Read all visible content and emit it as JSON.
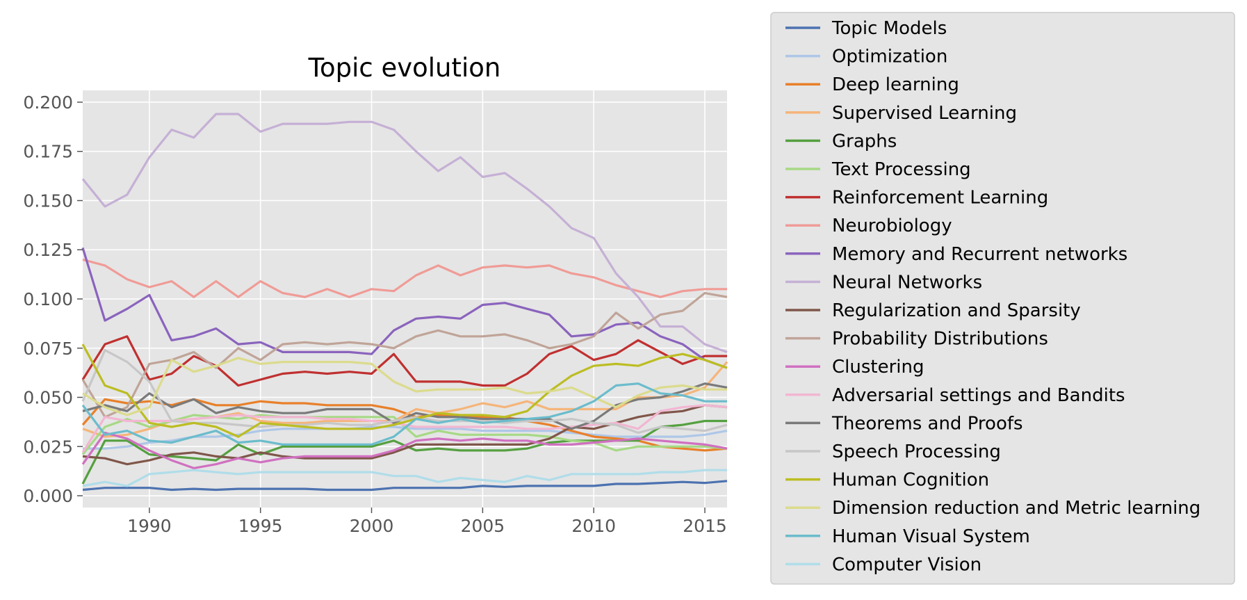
{
  "chart_data": {
    "type": "line",
    "title": "Topic evolution",
    "xlabel": "",
    "ylabel": "",
    "xlim": [
      1987,
      2016
    ],
    "ylim": [
      -0.006,
      0.206
    ],
    "x_ticks": [
      1990,
      1995,
      2000,
      2005,
      2010,
      2015
    ],
    "y_ticks": [
      "0.000",
      "0.025",
      "0.050",
      "0.075",
      "0.100",
      "0.125",
      "0.150",
      "0.175",
      "0.200"
    ],
    "grid": true,
    "legend_position": "right, outside plot",
    "x": [
      1987,
      1988,
      1989,
      1990,
      1991,
      1992,
      1993,
      1994,
      1995,
      1996,
      1997,
      1998,
      1999,
      2000,
      2001,
      2002,
      2003,
      2004,
      2005,
      2006,
      2007,
      2008,
      2009,
      2010,
      2011,
      2012,
      2013,
      2014,
      2015,
      2016
    ],
    "series": [
      {
        "name": "Topic Models",
        "color": "#4c72b0",
        "values": [
          0.003,
          0.004,
          0.004,
          0.004,
          0.003,
          0.0035,
          0.003,
          0.0035,
          0.0035,
          0.0035,
          0.0035,
          0.003,
          0.003,
          0.003,
          0.004,
          0.004,
          0.004,
          0.004,
          0.005,
          0.0045,
          0.005,
          0.005,
          0.005,
          0.005,
          0.006,
          0.006,
          0.0065,
          0.007,
          0.0065,
          0.0075
        ]
      },
      {
        "name": "Optimization",
        "color": "#aec7e8",
        "values": [
          0.024,
          0.024,
          0.025,
          0.027,
          0.028,
          0.03,
          0.03,
          0.031,
          0.033,
          0.034,
          0.034,
          0.034,
          0.034,
          0.035,
          0.035,
          0.034,
          0.034,
          0.034,
          0.033,
          0.033,
          0.033,
          0.033,
          0.032,
          0.031,
          0.03,
          0.03,
          0.03,
          0.03,
          0.031,
          0.033
        ]
      },
      {
        "name": "Deep learning",
        "color": "#e8802a",
        "values": [
          0.036,
          0.049,
          0.047,
          0.048,
          0.046,
          0.049,
          0.046,
          0.046,
          0.048,
          0.047,
          0.047,
          0.046,
          0.046,
          0.046,
          0.044,
          0.04,
          0.041,
          0.04,
          0.04,
          0.04,
          0.038,
          0.036,
          0.033,
          0.03,
          0.029,
          0.028,
          0.025,
          0.024,
          0.023,
          0.024
        ]
      },
      {
        "name": "Supervised Learning",
        "color": "#f5b57a",
        "values": [
          0.034,
          0.03,
          0.031,
          0.034,
          0.038,
          0.039,
          0.04,
          0.042,
          0.038,
          0.037,
          0.037,
          0.038,
          0.038,
          0.038,
          0.038,
          0.044,
          0.042,
          0.044,
          0.047,
          0.045,
          0.048,
          0.044,
          0.044,
          0.044,
          0.044,
          0.05,
          0.05,
          0.051,
          0.055,
          0.068
        ]
      },
      {
        "name": "Graphs",
        "color": "#55a040",
        "values": [
          0.006,
          0.028,
          0.028,
          0.021,
          0.02,
          0.019,
          0.018,
          0.026,
          0.021,
          0.025,
          0.025,
          0.025,
          0.025,
          0.025,
          0.028,
          0.023,
          0.024,
          0.023,
          0.023,
          0.023,
          0.024,
          0.027,
          0.028,
          0.028,
          0.028,
          0.028,
          0.035,
          0.036,
          0.038,
          0.038
        ]
      },
      {
        "name": "Text Processing",
        "color": "#a6d985",
        "values": [
          0.021,
          0.035,
          0.039,
          0.035,
          0.038,
          0.041,
          0.04,
          0.039,
          0.041,
          0.04,
          0.04,
          0.04,
          0.04,
          0.04,
          0.04,
          0.03,
          0.033,
          0.031,
          0.031,
          0.031,
          0.031,
          0.03,
          0.028,
          0.027,
          0.023,
          0.025,
          0.025,
          0.025,
          0.025,
          0.024
        ]
      },
      {
        "name": "Reinforcement Learning",
        "color": "#c03030",
        "values": [
          0.059,
          0.077,
          0.081,
          0.059,
          0.062,
          0.071,
          0.066,
          0.056,
          0.059,
          0.062,
          0.063,
          0.062,
          0.063,
          0.062,
          0.072,
          0.058,
          0.058,
          0.058,
          0.056,
          0.056,
          0.062,
          0.072,
          0.076,
          0.069,
          0.072,
          0.079,
          0.073,
          0.067,
          0.071,
          0.071
        ]
      },
      {
        "name": "Neurobiology",
        "color": "#f09b96",
        "values": [
          0.12,
          0.117,
          0.11,
          0.106,
          0.109,
          0.101,
          0.109,
          0.101,
          0.109,
          0.103,
          0.101,
          0.105,
          0.101,
          0.105,
          0.104,
          0.112,
          0.117,
          0.112,
          0.116,
          0.117,
          0.116,
          0.117,
          0.113,
          0.111,
          0.107,
          0.104,
          0.101,
          0.104,
          0.105,
          0.105
        ]
      },
      {
        "name": "Memory and Recurrent networks",
        "color": "#8a63bd",
        "values": [
          0.126,
          0.089,
          0.095,
          0.102,
          0.079,
          0.081,
          0.085,
          0.077,
          0.078,
          0.073,
          0.073,
          0.073,
          0.073,
          0.072,
          0.084,
          0.09,
          0.091,
          0.09,
          0.097,
          0.098,
          0.095,
          0.092,
          0.081,
          0.082,
          0.087,
          0.088,
          0.081,
          0.077,
          0.069,
          0.065
        ]
      },
      {
        "name": "Neural Networks",
        "color": "#c5b0d5",
        "values": [
          0.161,
          0.147,
          0.153,
          0.172,
          0.186,
          0.182,
          0.194,
          0.194,
          0.185,
          0.189,
          0.189,
          0.189,
          0.19,
          0.19,
          0.186,
          0.175,
          0.165,
          0.172,
          0.162,
          0.164,
          0.156,
          0.147,
          0.136,
          0.131,
          0.113,
          0.101,
          0.086,
          0.086,
          0.077,
          0.073
        ]
      },
      {
        "name": "Regularization and Sparsity",
        "color": "#80564a",
        "values": [
          0.02,
          0.019,
          0.016,
          0.018,
          0.021,
          0.022,
          0.02,
          0.019,
          0.022,
          0.02,
          0.019,
          0.019,
          0.019,
          0.019,
          0.022,
          0.026,
          0.026,
          0.026,
          0.026,
          0.026,
          0.026,
          0.029,
          0.035,
          0.034,
          0.037,
          0.04,
          0.042,
          0.043,
          0.046,
          0.045
        ]
      },
      {
        "name": "Probability Distributions",
        "color": "#c0a498",
        "values": [
          0.059,
          0.04,
          0.045,
          0.067,
          0.069,
          0.073,
          0.065,
          0.075,
          0.069,
          0.077,
          0.078,
          0.077,
          0.078,
          0.077,
          0.075,
          0.081,
          0.084,
          0.081,
          0.081,
          0.082,
          0.079,
          0.075,
          0.077,
          0.081,
          0.093,
          0.085,
          0.092,
          0.094,
          0.103,
          0.101
        ]
      },
      {
        "name": "Clustering",
        "color": "#d070c0",
        "values": [
          0.016,
          0.032,
          0.029,
          0.023,
          0.018,
          0.014,
          0.016,
          0.019,
          0.017,
          0.019,
          0.02,
          0.02,
          0.02,
          0.02,
          0.023,
          0.028,
          0.029,
          0.028,
          0.029,
          0.028,
          0.028,
          0.026,
          0.026,
          0.027,
          0.028,
          0.029,
          0.028,
          0.027,
          0.026,
          0.024
        ]
      },
      {
        "name": "Adversarial settings and Bandits",
        "color": "#f2b6d2",
        "values": [
          0.022,
          0.04,
          0.038,
          0.038,
          0.038,
          0.039,
          0.04,
          0.041,
          0.04,
          0.04,
          0.04,
          0.039,
          0.039,
          0.038,
          0.037,
          0.035,
          0.035,
          0.035,
          0.035,
          0.035,
          0.034,
          0.034,
          0.035,
          0.036,
          0.037,
          0.034,
          0.043,
          0.045,
          0.046,
          0.045
        ]
      },
      {
        "name": "Theorems and Proofs",
        "color": "#7a7a7a",
        "values": [
          0.043,
          0.046,
          0.043,
          0.052,
          0.045,
          0.049,
          0.042,
          0.045,
          0.043,
          0.042,
          0.042,
          0.044,
          0.044,
          0.044,
          0.037,
          0.042,
          0.04,
          0.04,
          0.039,
          0.039,
          0.039,
          0.039,
          0.034,
          0.038,
          0.046,
          0.049,
          0.05,
          0.053,
          0.057,
          0.055
        ]
      },
      {
        "name": "Speech Processing",
        "color": "#c7c7c7",
        "values": [
          0.048,
          0.074,
          0.068,
          0.058,
          0.038,
          0.037,
          0.037,
          0.036,
          0.035,
          0.036,
          0.036,
          0.037,
          0.036,
          0.036,
          0.038,
          0.04,
          0.038,
          0.038,
          0.038,
          0.037,
          0.038,
          0.038,
          0.039,
          0.037,
          0.036,
          0.032,
          0.035,
          0.034,
          0.033,
          0.036
        ]
      },
      {
        "name": "Human Cognition",
        "color": "#bcbd22",
        "values": [
          0.077,
          0.056,
          0.052,
          0.037,
          0.035,
          0.037,
          0.035,
          0.03,
          0.037,
          0.036,
          0.035,
          0.034,
          0.034,
          0.034,
          0.036,
          0.039,
          0.042,
          0.041,
          0.041,
          0.04,
          0.043,
          0.053,
          0.061,
          0.066,
          0.067,
          0.066,
          0.07,
          0.072,
          0.069,
          0.065
        ]
      },
      {
        "name": "Dimension reduction and Metric learning",
        "color": "#dbdb8d",
        "values": [
          0.052,
          0.045,
          0.041,
          0.045,
          0.069,
          0.063,
          0.066,
          0.07,
          0.067,
          0.068,
          0.068,
          0.068,
          0.068,
          0.067,
          0.058,
          0.053,
          0.054,
          0.054,
          0.054,
          0.055,
          0.052,
          0.053,
          0.055,
          0.05,
          0.045,
          0.051,
          0.055,
          0.056,
          0.054,
          0.054
        ]
      },
      {
        "name": "Human Visual System",
        "color": "#6bbccc",
        "values": [
          0.046,
          0.031,
          0.033,
          0.028,
          0.027,
          0.03,
          0.033,
          0.027,
          0.028,
          0.026,
          0.026,
          0.026,
          0.026,
          0.026,
          0.03,
          0.039,
          0.037,
          0.039,
          0.037,
          0.038,
          0.039,
          0.04,
          0.043,
          0.048,
          0.056,
          0.057,
          0.052,
          0.051,
          0.048,
          0.048
        ]
      },
      {
        "name": "Computer Vision",
        "color": "#b0dde9",
        "values": [
          0.005,
          0.007,
          0.005,
          0.011,
          0.012,
          0.013,
          0.012,
          0.011,
          0.012,
          0.012,
          0.012,
          0.012,
          0.012,
          0.012,
          0.01,
          0.01,
          0.007,
          0.009,
          0.008,
          0.007,
          0.01,
          0.008,
          0.011,
          0.011,
          0.011,
          0.011,
          0.012,
          0.012,
          0.013,
          0.013
        ]
      }
    ]
  }
}
